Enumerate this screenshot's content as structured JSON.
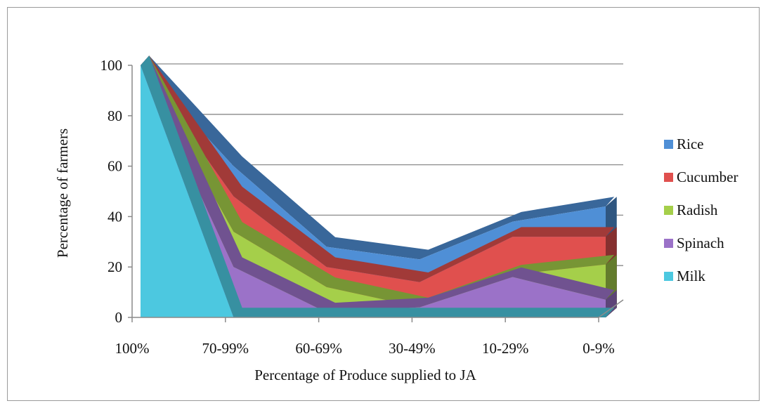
{
  "chart_data": {
    "type": "area",
    "style": "3d-stacked",
    "xlabel": "Percentage of Produce supplied to JA",
    "ylabel": "Percentage of farmers",
    "categories": [
      "100%",
      "70-99%",
      "60-69%",
      "30-49%",
      "10-29%",
      "0-9%"
    ],
    "ylim": [
      0,
      100
    ],
    "yticks": [
      0,
      20,
      40,
      60,
      80,
      100
    ],
    "grid": true,
    "legend_position": "right",
    "series": [
      {
        "name": "Milk",
        "color": "#4cc8e0",
        "values": [
          100,
          0,
          0,
          0,
          0,
          0
        ]
      },
      {
        "name": "Spinach",
        "color": "#9b72c8",
        "values": [
          100,
          20,
          2,
          4,
          16,
          7
        ]
      },
      {
        "name": "Radish",
        "color": "#a5cf4a",
        "values": [
          100,
          34,
          12,
          4,
          17,
          21
        ]
      },
      {
        "name": "Cucumber",
        "color": "#e0504e",
        "values": [
          100,
          48,
          20,
          14,
          32,
          32
        ]
      },
      {
        "name": "Rice",
        "color": "#4f8fd6",
        "values": [
          100,
          60,
          28,
          23,
          38,
          44
        ]
      }
    ],
    "series_values_note_cumulative": true,
    "legend_order": [
      "Rice",
      "Cucumber",
      "Radish",
      "Spinach",
      "Milk"
    ]
  }
}
